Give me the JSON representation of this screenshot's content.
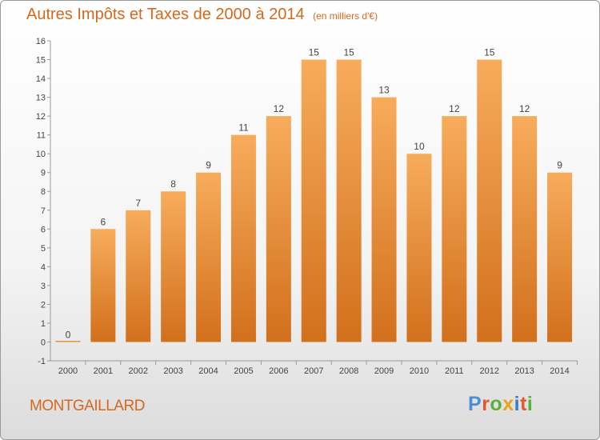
{
  "title": "Autres Impôts et Taxes de 2000 à 2014",
  "unit": "(en milliers d'€)",
  "town": "MONTGAILLARD",
  "brand": {
    "text": "Proxiti",
    "letter_colors": [
      "#4a8fd6",
      "#e4572e",
      "#5ab03c",
      "#e8a317",
      "#3b7dc4",
      "#e4572e",
      "#5ab03c"
    ]
  },
  "colors": {
    "bar_light": "#f7ac5c",
    "bar_dark": "#d2701c",
    "accent_text": "#d4691c",
    "label": "#444444"
  },
  "chart_data": {
    "type": "bar",
    "categories": [
      "2000",
      "2001",
      "2002",
      "2003",
      "2004",
      "2005",
      "2006",
      "2007",
      "2008",
      "2009",
      "2010",
      "2011",
      "2012",
      "2013",
      "2014"
    ],
    "values": [
      0,
      6,
      7,
      8,
      9,
      11,
      12,
      15,
      15,
      13,
      10,
      12,
      15,
      12,
      9
    ],
    "title": "Autres Impôts et Taxes de 2000 à 2014",
    "xlabel": "",
    "ylabel": "",
    "ylim": [
      -1,
      16
    ],
    "yticks": [
      -1,
      0,
      1,
      2,
      3,
      4,
      5,
      6,
      7,
      8,
      9,
      10,
      11,
      12,
      13,
      14,
      15,
      16
    ],
    "grid": false,
    "data_labels": true
  }
}
